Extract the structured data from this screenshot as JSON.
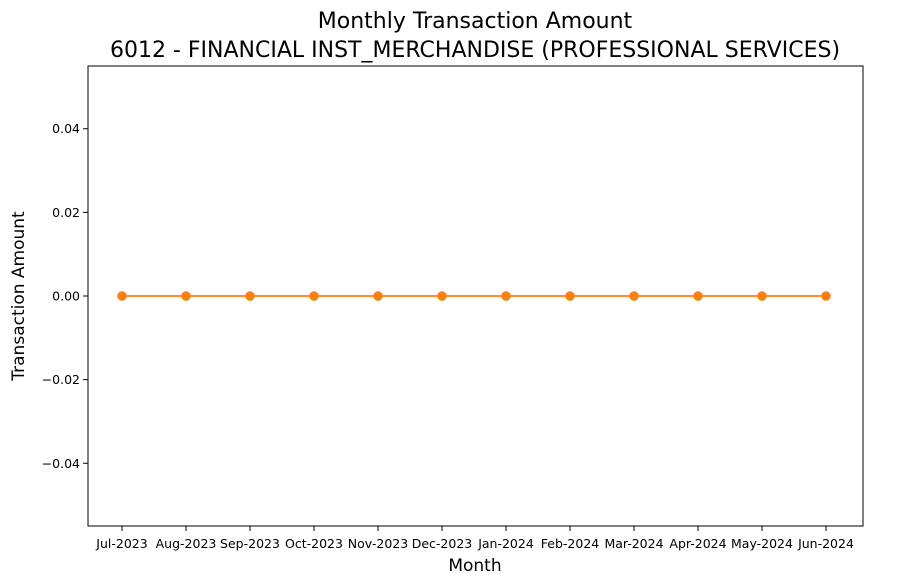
{
  "chart_data": {
    "type": "line",
    "title_line1": "Monthly Transaction Amount",
    "title_line2": "6012 - FINANCIAL INST_MERCHANDISE (PROFESSIONAL SERVICES)",
    "xlabel": "Month",
    "ylabel": "Transaction Amount",
    "categories": [
      "Jul-2023",
      "Aug-2023",
      "Sep-2023",
      "Oct-2023",
      "Nov-2023",
      "Dec-2023",
      "Jan-2024",
      "Feb-2024",
      "Mar-2024",
      "Apr-2024",
      "May-2024",
      "Jun-2024"
    ],
    "series": [
      {
        "values": [
          0,
          0,
          0,
          0,
          0,
          0,
          0,
          0,
          0,
          0,
          0,
          0
        ],
        "color": "#ff7f0e",
        "marker": "circle"
      }
    ],
    "yticks": [
      -0.04,
      -0.02,
      0.0,
      0.02,
      0.04
    ],
    "ytick_labels": [
      "−0.04",
      "−0.02",
      "0.00",
      "0.02",
      "0.04"
    ],
    "ylim": [
      -0.055,
      0.055
    ],
    "grid": false,
    "legend": "none"
  }
}
